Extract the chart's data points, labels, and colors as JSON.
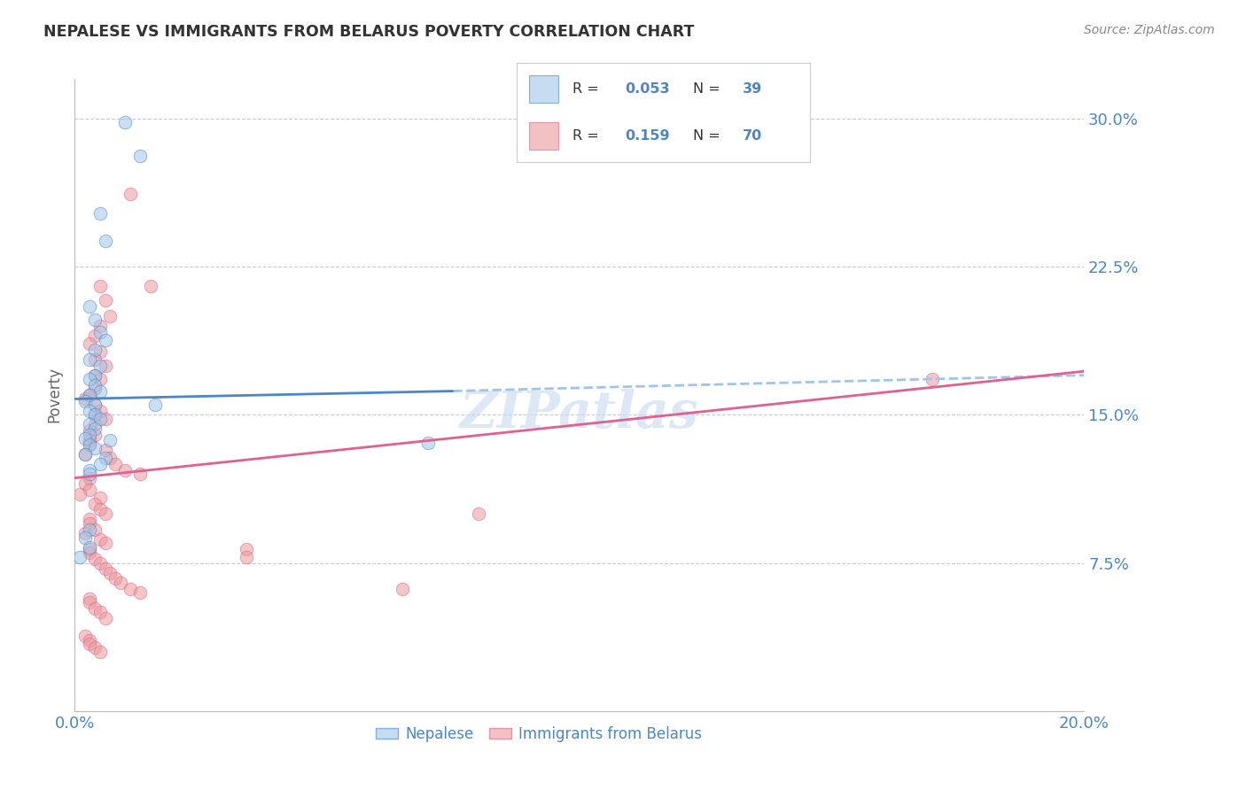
{
  "title": "NEPALESE VS IMMIGRANTS FROM BELARUS POVERTY CORRELATION CHART",
  "source": "Source: ZipAtlas.com",
  "ylabel": "Poverty",
  "ytick_labels": [
    "7.5%",
    "15.0%",
    "22.5%",
    "30.0%"
  ],
  "ytick_values": [
    0.075,
    0.15,
    0.225,
    0.3
  ],
  "xlim": [
    0.0,
    0.2
  ],
  "ylim": [
    0.0,
    0.32
  ],
  "legend_label_blue": "Nepalese",
  "legend_label_pink": "Immigrants from Belarus",
  "blue_color": "#9fc5e8",
  "pink_color": "#ea9999",
  "line_blue_solid_color": "#4a86c8",
  "line_blue_dashed_color": "#9fc5e8",
  "line_pink_color": "#e06090",
  "axis_color": "#4a86c8",
  "grid_color": "#cccccc",
  "title_color": "#333333",
  "source_color": "#888888",
  "watermark": "ZIPatlas",
  "background_color": "#ffffff",
  "blue_scatter_x": [
    0.01,
    0.013,
    0.005,
    0.006,
    0.003,
    0.004,
    0.005,
    0.006,
    0.004,
    0.003,
    0.005,
    0.004,
    0.003,
    0.004,
    0.005,
    0.003,
    0.002,
    0.004,
    0.003,
    0.004,
    0.005,
    0.003,
    0.004,
    0.003,
    0.002,
    0.003,
    0.004,
    0.016,
    0.002,
    0.006,
    0.005,
    0.003,
    0.007,
    0.003,
    0.07,
    0.003,
    0.002,
    0.003,
    0.001
  ],
  "blue_scatter_y": [
    0.298,
    0.281,
    0.252,
    0.238,
    0.205,
    0.198,
    0.192,
    0.188,
    0.183,
    0.178,
    0.175,
    0.17,
    0.168,
    0.165,
    0.162,
    0.16,
    0.157,
    0.155,
    0.152,
    0.15,
    0.148,
    0.145,
    0.143,
    0.14,
    0.138,
    0.135,
    0.133,
    0.155,
    0.13,
    0.128,
    0.125,
    0.122,
    0.137,
    0.12,
    0.136,
    0.092,
    0.088,
    0.083,
    0.078
  ],
  "pink_scatter_x": [
    0.011,
    0.015,
    0.005,
    0.006,
    0.007,
    0.005,
    0.004,
    0.003,
    0.005,
    0.004,
    0.006,
    0.004,
    0.005,
    0.004,
    0.003,
    0.002,
    0.004,
    0.005,
    0.004,
    0.006,
    0.004,
    0.003,
    0.004,
    0.003,
    0.003,
    0.006,
    0.002,
    0.007,
    0.008,
    0.01,
    0.013,
    0.003,
    0.002,
    0.003,
    0.001,
    0.005,
    0.004,
    0.005,
    0.006,
    0.003,
    0.003,
    0.004,
    0.002,
    0.005,
    0.006,
    0.003,
    0.003,
    0.004,
    0.005,
    0.006,
    0.007,
    0.008,
    0.009,
    0.011,
    0.013,
    0.003,
    0.003,
    0.004,
    0.005,
    0.006,
    0.17,
    0.08,
    0.065,
    0.034,
    0.034,
    0.002,
    0.003,
    0.003,
    0.004,
    0.005
  ],
  "pink_scatter_y": [
    0.262,
    0.215,
    0.215,
    0.208,
    0.2,
    0.195,
    0.19,
    0.186,
    0.182,
    0.178,
    0.175,
    0.17,
    0.168,
    0.163,
    0.16,
    0.158,
    0.155,
    0.152,
    0.15,
    0.148,
    0.145,
    0.142,
    0.14,
    0.137,
    0.135,
    0.132,
    0.13,
    0.128,
    0.125,
    0.122,
    0.12,
    0.118,
    0.115,
    0.112,
    0.11,
    0.108,
    0.105,
    0.102,
    0.1,
    0.097,
    0.095,
    0.092,
    0.09,
    0.087,
    0.085,
    0.082,
    0.08,
    0.077,
    0.075,
    0.072,
    0.07,
    0.067,
    0.065,
    0.062,
    0.06,
    0.057,
    0.055,
    0.052,
    0.05,
    0.047,
    0.168,
    0.1,
    0.062,
    0.082,
    0.078,
    0.038,
    0.036,
    0.034,
    0.032,
    0.03
  ],
  "blue_solid_line_x": [
    0.0,
    0.075
  ],
  "blue_solid_line_y": [
    0.158,
    0.162
  ],
  "blue_dashed_line_x": [
    0.075,
    0.2
  ],
  "blue_dashed_line_y": [
    0.162,
    0.17
  ],
  "pink_line_x": [
    0.0,
    0.2
  ],
  "pink_line_y": [
    0.118,
    0.172
  ]
}
